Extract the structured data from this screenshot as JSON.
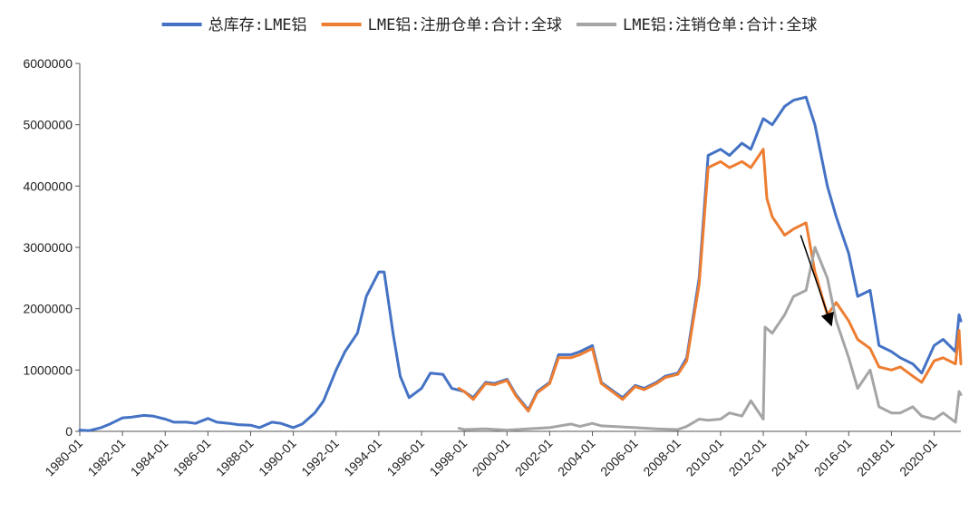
{
  "chart_data": {
    "type": "line",
    "title": "",
    "xlabel": "",
    "ylabel": "",
    "x_range": [
      "1980-01",
      "2021-04"
    ],
    "ylim": [
      0,
      6000000
    ],
    "y_ticks": [
      0,
      1000000,
      2000000,
      3000000,
      4000000,
      5000000,
      6000000
    ],
    "y_tick_labels": [
      "0",
      "1000000",
      "2000000",
      "3000000",
      "4000000",
      "5000000",
      "6000000"
    ],
    "x_ticks": [
      "1980-01",
      "1982-01",
      "1984-01",
      "1986-01",
      "1988-01",
      "1990-01",
      "1992-01",
      "1994-01",
      "1996-01",
      "1998-01",
      "2000-01",
      "2002-01",
      "2004-01",
      "2006-01",
      "2008-01",
      "2010-01",
      "2012-01",
      "2014-01",
      "2016-01",
      "2018-01",
      "2020-01"
    ],
    "grid": false,
    "legend_position": "top",
    "series": [
      {
        "name": "总库存:LME铝",
        "color": "#4472C4",
        "points": [
          [
            "1980-01",
            20000
          ],
          [
            "1980-06",
            10000
          ],
          [
            "1981-01",
            60000
          ],
          [
            "1981-06",
            120000
          ],
          [
            "1982-01",
            220000
          ],
          [
            "1982-06",
            230000
          ],
          [
            "1983-01",
            260000
          ],
          [
            "1983-06",
            250000
          ],
          [
            "1984-01",
            200000
          ],
          [
            "1984-06",
            150000
          ],
          [
            "1985-01",
            150000
          ],
          [
            "1985-06",
            130000
          ],
          [
            "1986-01",
            210000
          ],
          [
            "1986-06",
            150000
          ],
          [
            "1987-01",
            130000
          ],
          [
            "1987-06",
            110000
          ],
          [
            "1988-01",
            100000
          ],
          [
            "1988-06",
            60000
          ],
          [
            "1989-01",
            150000
          ],
          [
            "1989-06",
            130000
          ],
          [
            "1990-01",
            60000
          ],
          [
            "1990-06",
            120000
          ],
          [
            "1991-01",
            300000
          ],
          [
            "1991-06",
            500000
          ],
          [
            "1992-01",
            1000000
          ],
          [
            "1992-06",
            1300000
          ],
          [
            "1993-01",
            1600000
          ],
          [
            "1993-06",
            2200000
          ],
          [
            "1994-01",
            2600000
          ],
          [
            "1994-04",
            2600000
          ],
          [
            "1994-09",
            1600000
          ],
          [
            "1995-01",
            900000
          ],
          [
            "1995-06",
            550000
          ],
          [
            "1996-01",
            700000
          ],
          [
            "1996-06",
            950000
          ],
          [
            "1997-01",
            930000
          ],
          [
            "1997-06",
            700000
          ],
          [
            "1998-01",
            650000
          ],
          [
            "1998-06",
            550000
          ],
          [
            "1999-01",
            800000
          ],
          [
            "1999-06",
            780000
          ],
          [
            "2000-01",
            850000
          ],
          [
            "2000-06",
            600000
          ],
          [
            "2001-01",
            350000
          ],
          [
            "2001-06",
            650000
          ],
          [
            "2002-01",
            800000
          ],
          [
            "2002-06",
            1250000
          ],
          [
            "2003-01",
            1250000
          ],
          [
            "2003-06",
            1300000
          ],
          [
            "2004-01",
            1400000
          ],
          [
            "2004-06",
            800000
          ],
          [
            "2005-01",
            650000
          ],
          [
            "2005-06",
            550000
          ],
          [
            "2006-01",
            750000
          ],
          [
            "2006-06",
            700000
          ],
          [
            "2007-01",
            800000
          ],
          [
            "2007-06",
            900000
          ],
          [
            "2008-01",
            950000
          ],
          [
            "2008-06",
            1200000
          ],
          [
            "2009-01",
            2500000
          ],
          [
            "2009-06",
            4500000
          ],
          [
            "2010-01",
            4600000
          ],
          [
            "2010-06",
            4500000
          ],
          [
            "2011-01",
            4700000
          ],
          [
            "2011-06",
            4600000
          ],
          [
            "2012-01",
            5100000
          ],
          [
            "2012-06",
            5000000
          ],
          [
            "2013-01",
            5300000
          ],
          [
            "2013-06",
            5400000
          ],
          [
            "2014-01",
            5450000
          ],
          [
            "2014-06",
            5000000
          ],
          [
            "2015-01",
            4000000
          ],
          [
            "2015-06",
            3500000
          ],
          [
            "2016-01",
            2900000
          ],
          [
            "2016-06",
            2200000
          ],
          [
            "2017-01",
            2300000
          ],
          [
            "2017-06",
            1400000
          ],
          [
            "2018-01",
            1300000
          ],
          [
            "2018-06",
            1200000
          ],
          [
            "2019-01",
            1100000
          ],
          [
            "2019-06",
            950000
          ],
          [
            "2020-01",
            1400000
          ],
          [
            "2020-06",
            1500000
          ],
          [
            "2021-01",
            1300000
          ],
          [
            "2021-03",
            1900000
          ],
          [
            "2021-04",
            1800000
          ]
        ]
      },
      {
        "name": "LME铝:注册仓单:合计:全球",
        "color": "#ED7D31",
        "points": [
          [
            "1997-10",
            700000
          ],
          [
            "1998-01",
            650000
          ],
          [
            "1998-06",
            520000
          ],
          [
            "1999-01",
            780000
          ],
          [
            "1999-06",
            760000
          ],
          [
            "2000-01",
            830000
          ],
          [
            "2000-06",
            580000
          ],
          [
            "2001-01",
            330000
          ],
          [
            "2001-06",
            630000
          ],
          [
            "2002-01",
            780000
          ],
          [
            "2002-06",
            1200000
          ],
          [
            "2003-01",
            1200000
          ],
          [
            "2003-06",
            1250000
          ],
          [
            "2004-01",
            1350000
          ],
          [
            "2004-06",
            780000
          ],
          [
            "2005-01",
            630000
          ],
          [
            "2005-06",
            520000
          ],
          [
            "2006-01",
            730000
          ],
          [
            "2006-06",
            680000
          ],
          [
            "2007-01",
            780000
          ],
          [
            "2007-06",
            880000
          ],
          [
            "2008-01",
            930000
          ],
          [
            "2008-06",
            1150000
          ],
          [
            "2009-01",
            2400000
          ],
          [
            "2009-06",
            4300000
          ],
          [
            "2010-01",
            4400000
          ],
          [
            "2010-06",
            4300000
          ],
          [
            "2011-01",
            4400000
          ],
          [
            "2011-06",
            4300000
          ],
          [
            "2012-01",
            4600000
          ],
          [
            "2012-03",
            3800000
          ],
          [
            "2012-06",
            3500000
          ],
          [
            "2013-01",
            3200000
          ],
          [
            "2013-06",
            3300000
          ],
          [
            "2014-01",
            3400000
          ],
          [
            "2014-06",
            2600000
          ],
          [
            "2015-01",
            1900000
          ],
          [
            "2015-06",
            2100000
          ],
          [
            "2016-01",
            1800000
          ],
          [
            "2016-06",
            1500000
          ],
          [
            "2017-01",
            1350000
          ],
          [
            "2017-06",
            1050000
          ],
          [
            "2018-01",
            1000000
          ],
          [
            "2018-06",
            1050000
          ],
          [
            "2019-01",
            900000
          ],
          [
            "2019-06",
            800000
          ],
          [
            "2020-01",
            1150000
          ],
          [
            "2020-06",
            1200000
          ],
          [
            "2021-01",
            1100000
          ],
          [
            "2021-03",
            1650000
          ],
          [
            "2021-04",
            1100000
          ]
        ]
      },
      {
        "name": "LME铝:注销仓单:合计:全球",
        "color": "#A5A5A5",
        "points": [
          [
            "1997-10",
            50000
          ],
          [
            "1998-01",
            30000
          ],
          [
            "1999-01",
            40000
          ],
          [
            "2000-01",
            20000
          ],
          [
            "2001-01",
            40000
          ],
          [
            "2002-01",
            60000
          ],
          [
            "2003-01",
            120000
          ],
          [
            "2003-06",
            80000
          ],
          [
            "2004-01",
            130000
          ],
          [
            "2004-06",
            90000
          ],
          [
            "2005-01",
            80000
          ],
          [
            "2006-01",
            60000
          ],
          [
            "2007-01",
            40000
          ],
          [
            "2008-01",
            30000
          ],
          [
            "2008-06",
            80000
          ],
          [
            "2009-01",
            200000
          ],
          [
            "2009-06",
            180000
          ],
          [
            "2010-01",
            200000
          ],
          [
            "2010-06",
            300000
          ],
          [
            "2011-01",
            250000
          ],
          [
            "2011-06",
            500000
          ],
          [
            "2012-01",
            200000
          ],
          [
            "2012-02",
            1700000
          ],
          [
            "2012-06",
            1600000
          ],
          [
            "2013-01",
            1900000
          ],
          [
            "2013-06",
            2200000
          ],
          [
            "2014-01",
            2300000
          ],
          [
            "2014-06",
            3000000
          ],
          [
            "2015-01",
            2500000
          ],
          [
            "2015-06",
            1800000
          ],
          [
            "2016-01",
            1200000
          ],
          [
            "2016-06",
            700000
          ],
          [
            "2017-01",
            1000000
          ],
          [
            "2017-06",
            400000
          ],
          [
            "2018-01",
            300000
          ],
          [
            "2018-06",
            300000
          ],
          [
            "2019-01",
            400000
          ],
          [
            "2019-06",
            250000
          ],
          [
            "2020-01",
            200000
          ],
          [
            "2020-06",
            300000
          ],
          [
            "2021-01",
            150000
          ],
          [
            "2021-03",
            650000
          ],
          [
            "2021-04",
            600000
          ]
        ]
      }
    ],
    "annotations": [
      {
        "type": "arrow",
        "color": "#000000",
        "from": [
          "2013-10",
          3200000
        ],
        "to": [
          "2015-03",
          1750000
        ]
      }
    ]
  }
}
